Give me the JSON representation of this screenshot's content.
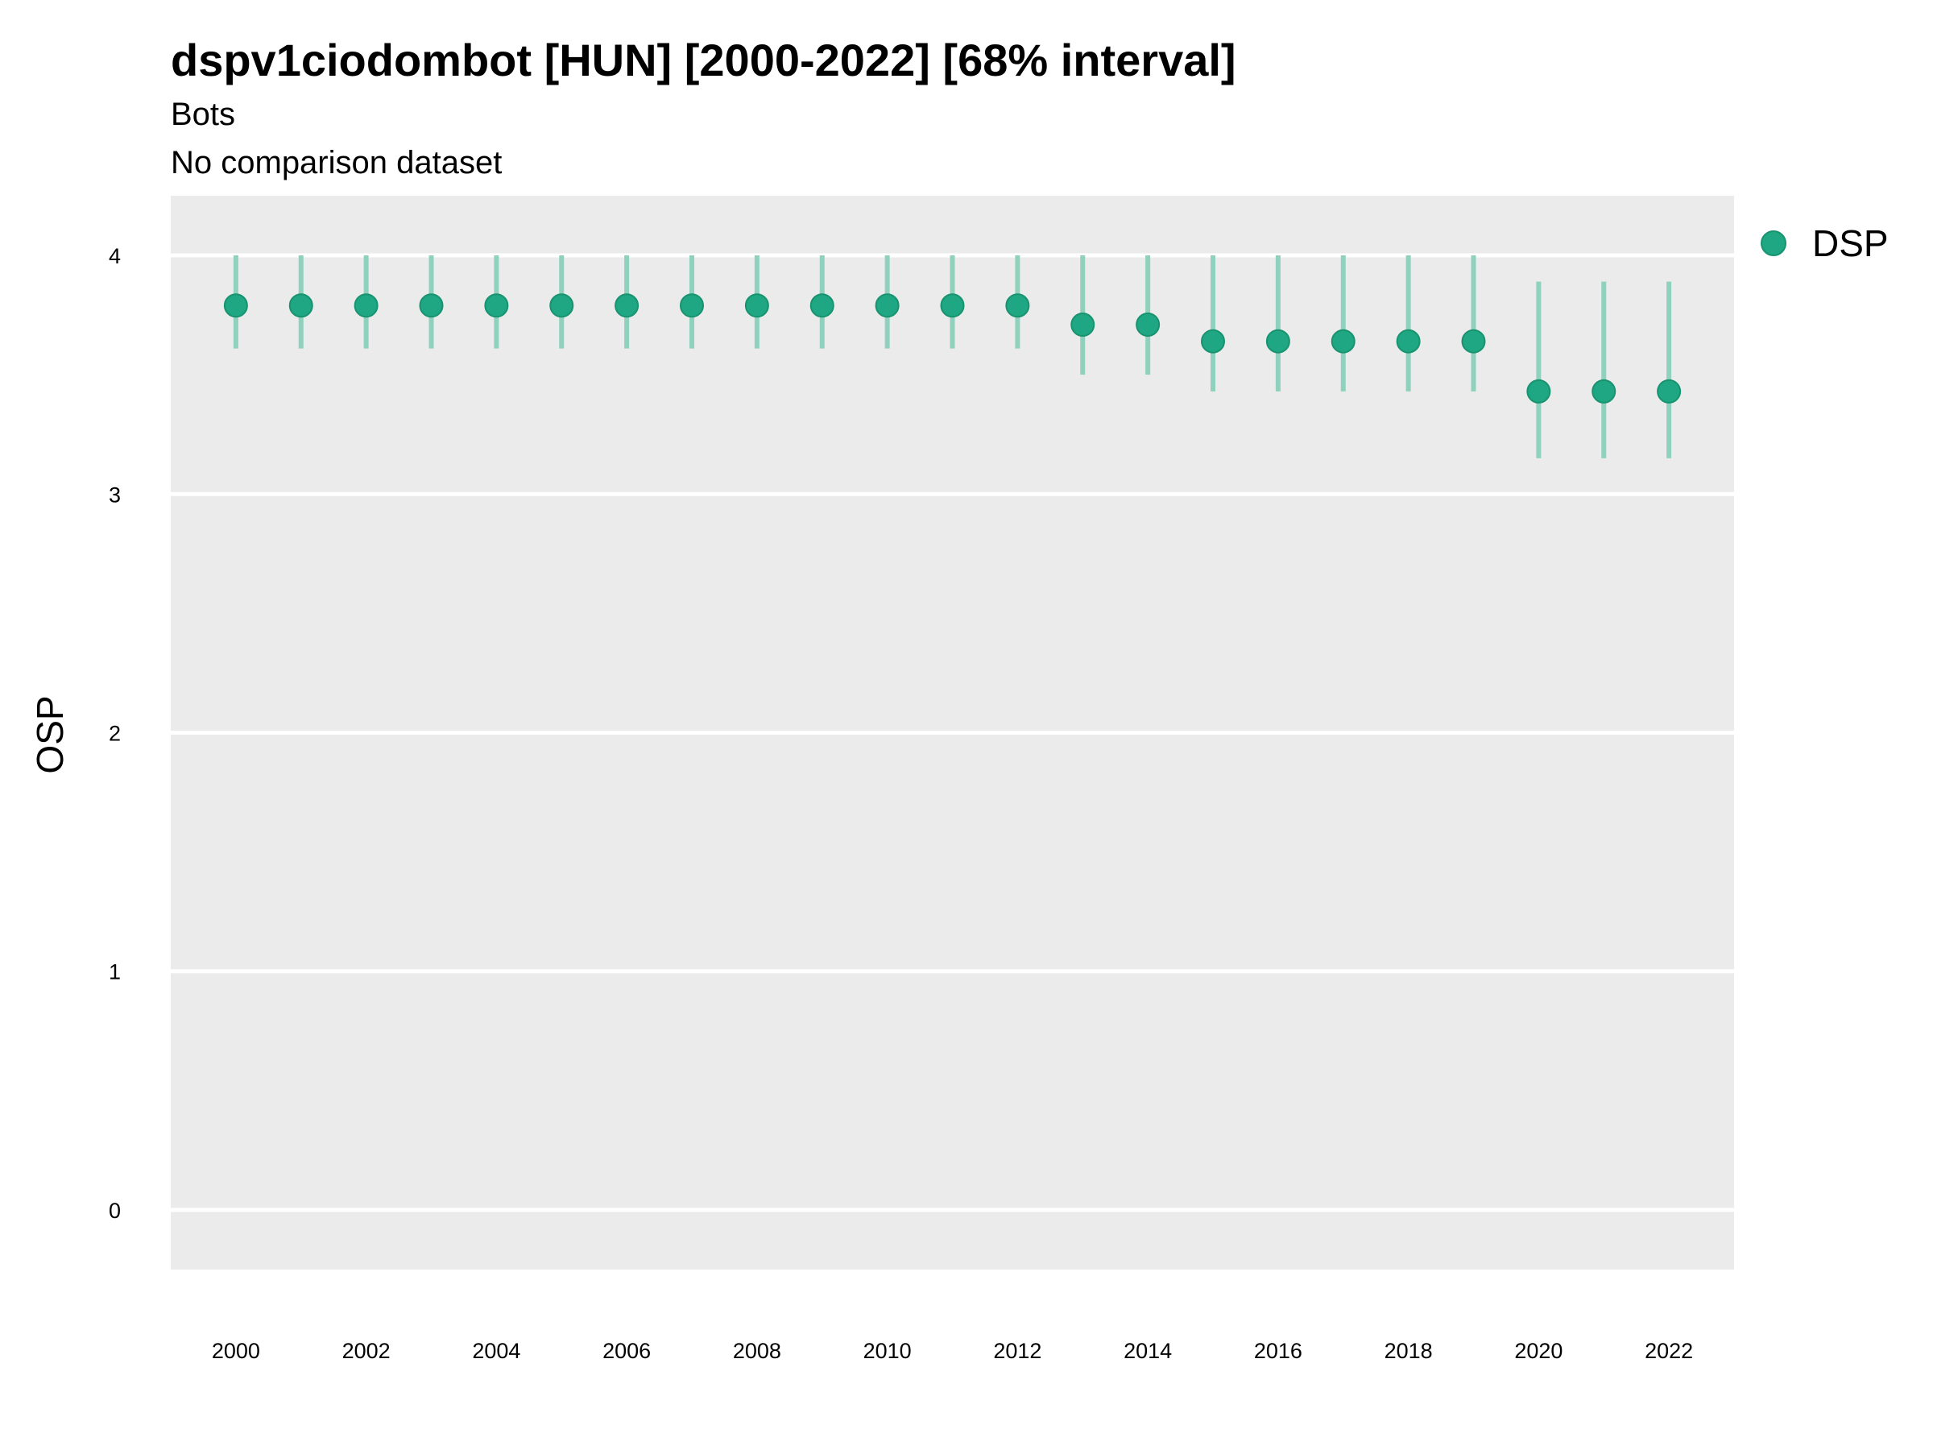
{
  "chart_data": {
    "type": "scatter",
    "title": "dspv1ciodombot [HUN] [2000-2022] [68% interval]",
    "subtitle": "Bots",
    "subtitle2": "No comparison dataset",
    "ylabel": "OSP",
    "xlabel": "",
    "ylim": [
      -0.25,
      4.25
    ],
    "xlim": [
      1999,
      2023
    ],
    "y_ticks": [
      0,
      1,
      2,
      3,
      4
    ],
    "y_tick_labels": [
      "0",
      "1",
      "2",
      "3",
      "4"
    ],
    "x_ticks": [
      2000,
      2002,
      2004,
      2006,
      2008,
      2010,
      2012,
      2014,
      2016,
      2018,
      2020,
      2022
    ],
    "x_tick_labels": [
      "2000",
      "2002",
      "2004",
      "2006",
      "2008",
      "2010",
      "2012",
      "2014",
      "2016",
      "2018",
      "2020",
      "2022"
    ],
    "grid": true,
    "legend_position": "right",
    "colors": {
      "panel_background": "#ebebeb",
      "grid": "#ffffff",
      "series": "#1fa683",
      "interval": "#8fd1bd"
    },
    "series": [
      {
        "name": "DSP",
        "x": [
          2000,
          2001,
          2002,
          2003,
          2004,
          2005,
          2006,
          2007,
          2008,
          2009,
          2010,
          2011,
          2012,
          2013,
          2014,
          2015,
          2016,
          2017,
          2018,
          2019,
          2020,
          2021,
          2022
        ],
        "y": [
          3.79,
          3.79,
          3.79,
          3.79,
          3.79,
          3.79,
          3.79,
          3.79,
          3.79,
          3.79,
          3.79,
          3.79,
          3.79,
          3.71,
          3.71,
          3.64,
          3.64,
          3.64,
          3.64,
          3.64,
          3.43,
          3.43,
          3.43
        ],
        "lower": [
          3.61,
          3.61,
          3.61,
          3.61,
          3.61,
          3.61,
          3.61,
          3.61,
          3.61,
          3.61,
          3.61,
          3.61,
          3.61,
          3.5,
          3.5,
          3.43,
          3.43,
          3.43,
          3.43,
          3.43,
          3.15,
          3.15,
          3.15
        ],
        "upper": [
          4.0,
          4.0,
          4.0,
          4.0,
          4.0,
          4.0,
          4.0,
          4.0,
          4.0,
          4.0,
          4.0,
          4.0,
          4.0,
          4.0,
          4.0,
          4.0,
          4.0,
          4.0,
          4.0,
          4.0,
          3.89,
          3.89,
          3.89
        ]
      }
    ]
  }
}
